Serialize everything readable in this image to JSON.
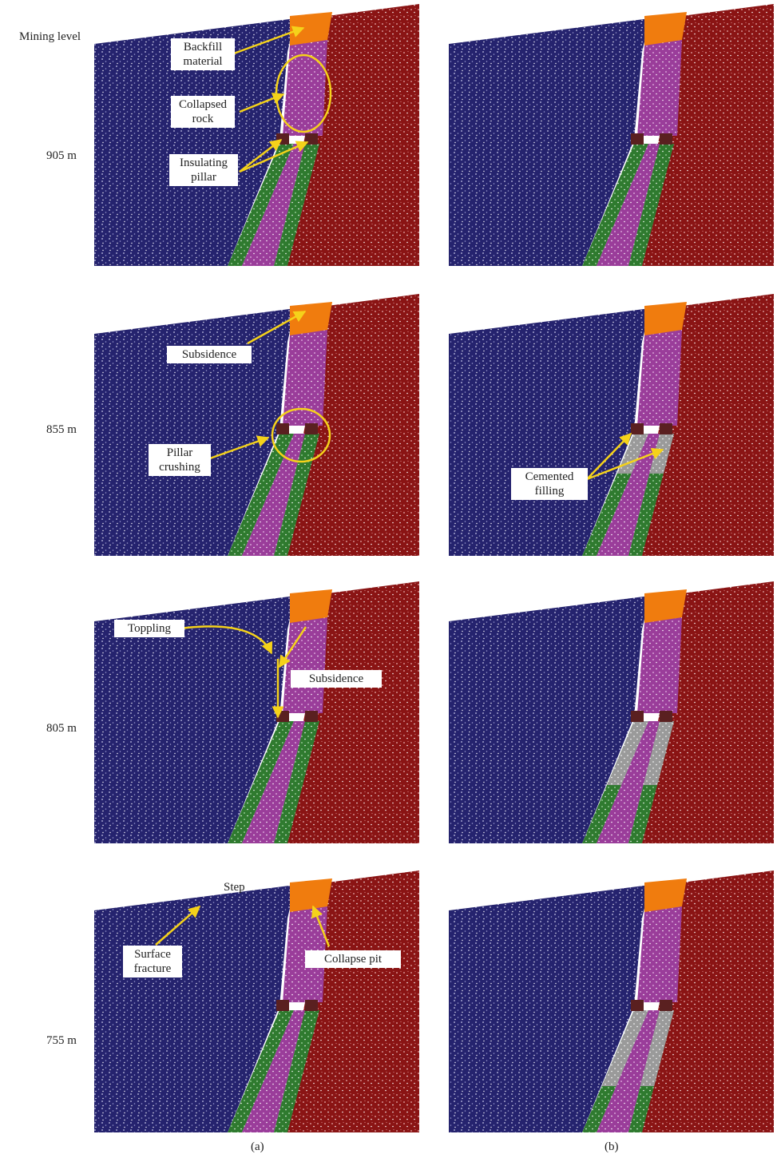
{
  "row_labels": [
    "Mining level",
    "905 m",
    "855 m",
    "805 m",
    "755 m"
  ],
  "panel_labels": [
    "(a)",
    "(b)"
  ],
  "annotations": {
    "backfill": "Backfill material",
    "collapsed": "Collapsed rock",
    "insulating": "Insulating pillar",
    "subsidence_1": "Subsidence",
    "pillar_crushing": "Pillar crushing",
    "cemented": "Cemented filling",
    "toppling": "Toppling",
    "subsidence_2": "Subsidence",
    "step": "Step",
    "surface_fracture": "Surface fracture",
    "collapse_pit": "Collapse pit"
  }
}
